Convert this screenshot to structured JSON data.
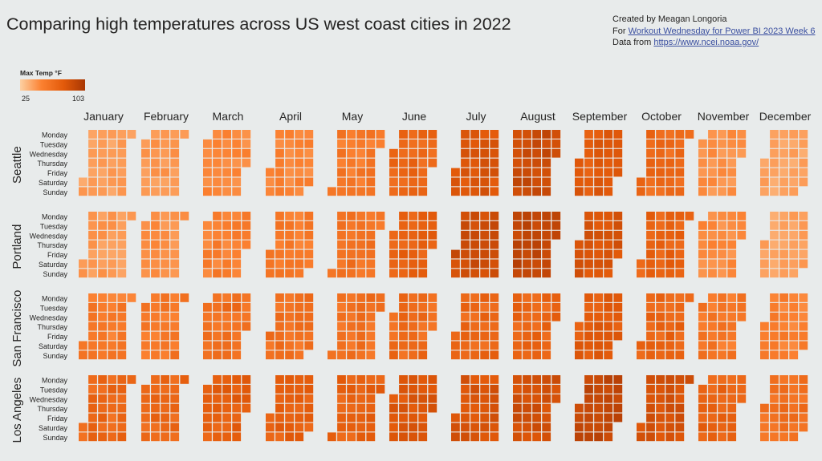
{
  "page": {
    "title": "Comparing high temperatures across US west coast cities in 2022",
    "credits": {
      "created_by": "Created by Meagan Longoria",
      "for_prefix": "For ",
      "for_link": "Workout Wednesday for Power BI 2023 Week 6",
      "data_prefix": "Data from ",
      "data_link": "https://www.ncei.noaa.gov/"
    }
  },
  "legend": {
    "title": "Max Temp °F",
    "min": "25",
    "max": "103",
    "colors": [
      "#fdd0a2",
      "#fb8030",
      "#e35a0a",
      "#a83704"
    ]
  },
  "chart_data": {
    "type": "heatmap",
    "title": "Comparing high temperatures across US west coast cities in 2022",
    "year": 2022,
    "value_label": "Max Temp °F",
    "range": [
      25,
      103
    ],
    "months": [
      "January",
      "February",
      "March",
      "April",
      "May",
      "June",
      "July",
      "August",
      "September",
      "October",
      "November",
      "December"
    ],
    "weekdays": [
      "Monday",
      "Tuesday",
      "Wednesday",
      "Thursday",
      "Friday",
      "Saturday",
      "Sunday"
    ],
    "cities": [
      {
        "name": "Seattle",
        "monthly_high_estimate": [
          45,
          48,
          54,
          56,
          61,
          69,
          80,
          88,
          77,
          68,
          51,
          43
        ]
      },
      {
        "name": "Portland",
        "monthly_high_estimate": [
          47,
          51,
          58,
          60,
          64,
          73,
          86,
          92,
          81,
          72,
          53,
          44
        ]
      },
      {
        "name": "San Francisco",
        "monthly_high_estimate": [
          60,
          62,
          66,
          65,
          66,
          68,
          70,
          71,
          76,
          71,
          62,
          58
        ]
      },
      {
        "name": "Los Angeles",
        "monthly_high_estimate": [
          69,
          70,
          74,
          73,
          73,
          79,
          81,
          84,
          91,
          82,
          72,
          66
        ]
      }
    ]
  }
}
